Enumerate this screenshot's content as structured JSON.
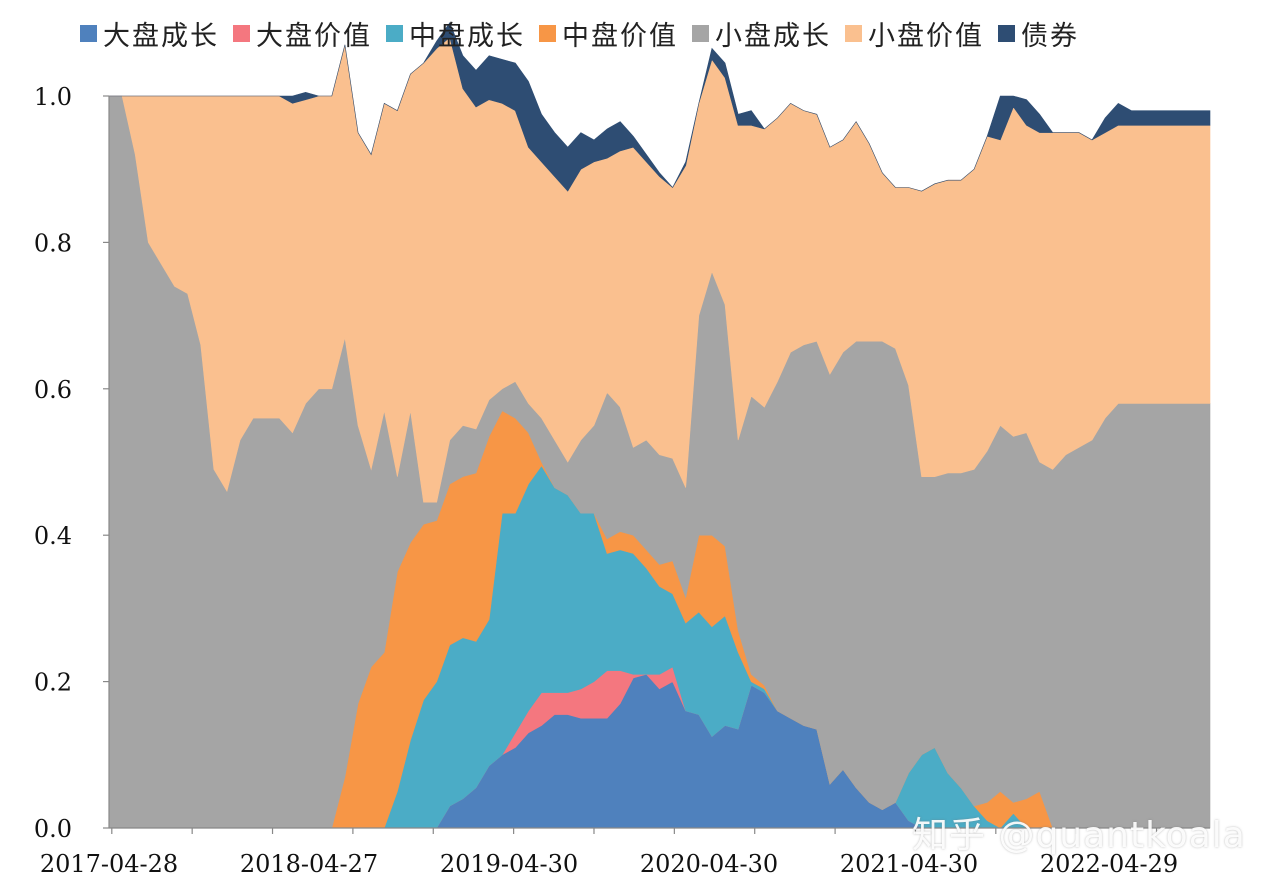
{
  "chart_data": {
    "type": "area",
    "stacked": true,
    "ylim": [
      0,
      1.0
    ],
    "yticks": [
      "0.0",
      "0.2",
      "0.4",
      "0.6",
      "0.8",
      "1.0"
    ],
    "xtick_labels": [
      "2017-04-28",
      "2018-04-27",
      "2019-04-30",
      "2020-04-30",
      "2021-04-30",
      "2022-04-29"
    ],
    "legend_position": "top",
    "series": [
      {
        "name": "大盘成长",
        "color": "#4F81BD",
        "values": [
          0,
          0,
          0,
          0,
          0,
          0,
          0,
          0,
          0,
          0,
          0,
          0,
          0,
          0,
          0,
          0,
          0,
          0,
          0,
          0,
          0,
          0,
          0,
          0,
          0,
          0,
          0.03,
          0.04,
          0.055,
          0.085,
          0.1,
          0.11,
          0.13,
          0.14,
          0.155,
          0.155,
          0.15,
          0.15,
          0.15,
          0.17,
          0.205,
          0.21,
          0.19,
          0.2,
          0.16,
          0.155,
          0.125,
          0.14,
          0.135,
          0.195,
          0.185,
          0.16,
          0.15,
          0.14,
          0.135,
          0.06,
          0.08,
          0.055,
          0.035,
          0.025,
          0.035,
          0.01,
          0,
          0,
          0,
          0,
          0,
          0,
          0,
          0,
          0,
          0,
          0,
          0,
          0,
          0,
          0,
          0,
          0,
          0,
          0,
          0,
          0,
          0,
          0
        ]
      },
      {
        "name": "大盘价值",
        "color": "#F4777F",
        "values": [
          0,
          0,
          0,
          0,
          0,
          0,
          0,
          0,
          0,
          0,
          0,
          0,
          0,
          0,
          0,
          0,
          0,
          0,
          0,
          0,
          0,
          0,
          0,
          0,
          0,
          0,
          0,
          0,
          0,
          0,
          0,
          0.02,
          0.03,
          0.045,
          0.03,
          0.03,
          0.04,
          0.05,
          0.065,
          0.045,
          0.005,
          0,
          0.02,
          0.02,
          0,
          0,
          0,
          0,
          0,
          0,
          0,
          0,
          0,
          0,
          0,
          0,
          0,
          0,
          0,
          0,
          0,
          0,
          0,
          0,
          0,
          0,
          0,
          0,
          0,
          0,
          0,
          0,
          0,
          0,
          0,
          0,
          0,
          0,
          0,
          0,
          0,
          0,
          0,
          0,
          0
        ]
      },
      {
        "name": "中盘成长",
        "color": "#4BACC6",
        "values": [
          0,
          0,
          0,
          0,
          0,
          0,
          0,
          0,
          0,
          0,
          0,
          0,
          0,
          0,
          0,
          0,
          0,
          0,
          0,
          0,
          0,
          0,
          0.05,
          0.12,
          0.175,
          0.2,
          0.22,
          0.22,
          0.2,
          0.2,
          0.33,
          0.3,
          0.31,
          0.31,
          0.28,
          0.27,
          0.24,
          0.23,
          0.16,
          0.165,
          0.165,
          0.145,
          0.12,
          0.1,
          0.12,
          0.14,
          0.15,
          0.15,
          0.105,
          0.005,
          0.005,
          0,
          0,
          0,
          0,
          0,
          0,
          0,
          0,
          0,
          0,
          0.065,
          0.1,
          0.11,
          0.075,
          0.055,
          0.03,
          0.01,
          0,
          0.02,
          0,
          0,
          0,
          0,
          0,
          0,
          0,
          0,
          0,
          0,
          0,
          0,
          0,
          0,
          0
        ]
      },
      {
        "name": "中盘价值",
        "color": "#F79646",
        "values": [
          0,
          0,
          0,
          0,
          0,
          0,
          0,
          0,
          0,
          0,
          0,
          0,
          0,
          0,
          0,
          0,
          0,
          0,
          0.07,
          0.17,
          0.22,
          0.24,
          0.3,
          0.27,
          0.24,
          0.22,
          0.22,
          0.22,
          0.23,
          0.25,
          0.14,
          0.13,
          0.07,
          0.005,
          0,
          0,
          0,
          0,
          0.02,
          0.025,
          0.025,
          0.025,
          0.03,
          0.045,
          0.035,
          0.105,
          0.125,
          0.095,
          0.03,
          0.01,
          0.005,
          0,
          0,
          0,
          0,
          0,
          0,
          0,
          0,
          0,
          0,
          0,
          0,
          0,
          0,
          0,
          0,
          0.025,
          0.05,
          0.015,
          0.04,
          0.05,
          0,
          0,
          0,
          0,
          0,
          0,
          0,
          0,
          0,
          0,
          0,
          0,
          0
        ]
      },
      {
        "name": "小盘成长",
        "color": "#A5A5A5",
        "values": [
          1.0,
          1.0,
          0.92,
          0.8,
          0.77,
          0.74,
          0.73,
          0.66,
          0.49,
          0.46,
          0.53,
          0.56,
          0.56,
          0.56,
          0.54,
          0.58,
          0.6,
          0.6,
          0.6,
          0.38,
          0.27,
          0.33,
          0.13,
          0.18,
          0.03,
          0.025,
          0.06,
          0.07,
          0.06,
          0.05,
          0.03,
          0.05,
          0.04,
          0.06,
          0.065,
          0.045,
          0.1,
          0.12,
          0.2,
          0.17,
          0.12,
          0.15,
          0.15,
          0.14,
          0.15,
          0.3,
          0.36,
          0.33,
          0.26,
          0.38,
          0.38,
          0.45,
          0.5,
          0.52,
          0.53,
          0.56,
          0.57,
          0.61,
          0.63,
          0.64,
          0.62,
          0.53,
          0.38,
          0.37,
          0.41,
          0.43,
          0.46,
          0.48,
          0.5,
          0.5,
          0.5,
          0.45,
          0.49,
          0.51,
          0.52,
          0.53,
          0.56,
          0.58,
          0.58,
          0.58,
          0.58,
          0.58,
          0.58,
          0.58,
          0.58
        ]
      },
      {
        "name": "小盘价值",
        "color": "#FAC08F",
        "values": [
          0,
          0,
          0.08,
          0.2,
          0.23,
          0.26,
          0.27,
          0.34,
          0.51,
          0.54,
          0.47,
          0.44,
          0.44,
          0.44,
          0.45,
          0.415,
          0.4,
          0.4,
          0.4,
          0.4,
          0.43,
          0.42,
          0.5,
          0.46,
          0.6,
          0.62,
          0.55,
          0.46,
          0.44,
          0.41,
          0.39,
          0.37,
          0.35,
          0.35,
          0.36,
          0.37,
          0.37,
          0.36,
          0.32,
          0.35,
          0.41,
          0.38,
          0.38,
          0.37,
          0.44,
          0.29,
          0.29,
          0.31,
          0.43,
          0.37,
          0.38,
          0.36,
          0.34,
          0.32,
          0.31,
          0.31,
          0.29,
          0.3,
          0.27,
          0.23,
          0.22,
          0.27,
          0.39,
          0.4,
          0.4,
          0.4,
          0.41,
          0.43,
          0.39,
          0.45,
          0.42,
          0.45,
          0.46,
          0.44,
          0.43,
          0.41,
          0.39,
          0.38,
          0.38,
          0.38,
          0.38,
          0.38,
          0.38,
          0.38,
          0.38
        ]
      },
      {
        "name": "债券",
        "color": "#2E4D73",
        "values": [
          0,
          0,
          0,
          0,
          0,
          0,
          0,
          0,
          0,
          0,
          0,
          0,
          0,
          0,
          0.01,
          0.01,
          0,
          0,
          0,
          0,
          0,
          0,
          0,
          0,
          0,
          0.01,
          0.02,
          0.045,
          0.05,
          0.06,
          0.06,
          0.065,
          0.09,
          0.065,
          0.06,
          0.06,
          0.05,
          0.03,
          0.04,
          0.04,
          0.015,
          0.01,
          0.005,
          0,
          0.005,
          0,
          0.015,
          0.02,
          0.015,
          0.02,
          0,
          0,
          0,
          0,
          0,
          0,
          0,
          0,
          0,
          0,
          0,
          0,
          0,
          0,
          0,
          0,
          0,
          0,
          0.06,
          0.015,
          0.035,
          0.025,
          0,
          0,
          0,
          0,
          0.02,
          0.03,
          0.02,
          0.02,
          0.02,
          0.02,
          0.02,
          0.02,
          0.02
        ]
      }
    ]
  },
  "watermark": "知乎 @quantkoala"
}
